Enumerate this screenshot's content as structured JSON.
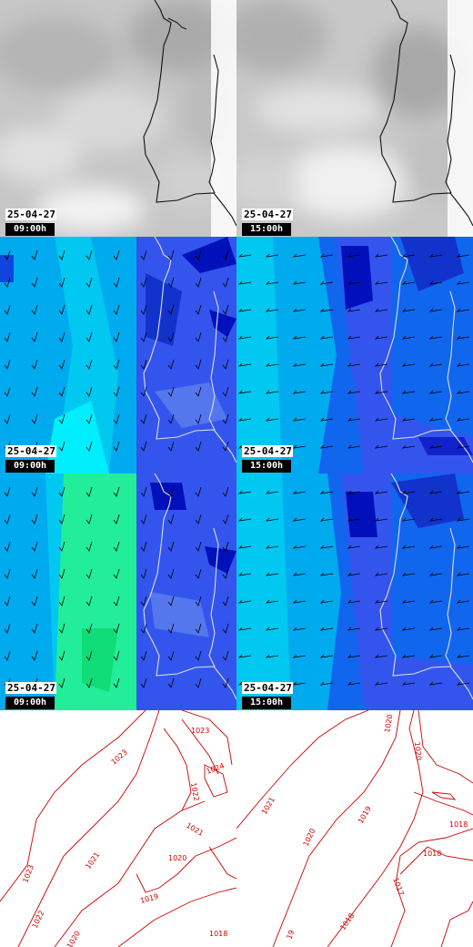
{
  "date_stamp": "25-04-27",
  "rows": [
    {
      "kind": "cloud",
      "panels": [
        {
          "time": "09:00h"
        },
        {
          "time": "15:00h"
        }
      ]
    },
    {
      "kind": "wind-low",
      "panels": [
        {
          "time": "09:00h"
        },
        {
          "time": "15:00h"
        }
      ]
    },
    {
      "kind": "wind-high",
      "panels": [
        {
          "time": "09:00h"
        },
        {
          "time": "15:00h"
        }
      ]
    },
    {
      "kind": "pressure",
      "panels": [
        {
          "labels": [
            "1023",
            "1023",
            "1024",
            "1022",
            "1021",
            "1023",
            "1022",
            "1021",
            "1020",
            "1019",
            "1020",
            "1018"
          ]
        },
        {
          "labels": [
            "1020",
            "1020",
            "1021",
            "1020",
            "1019",
            "1018",
            "1018",
            "1017",
            "1018",
            "19"
          ]
        }
      ]
    }
  ],
  "colors": {
    "coast": "#111111",
    "contour": "#cc0000",
    "cloud_bg": "#c4c4c4",
    "wind_sea": "#00ccee",
    "wind_land": "#3355ee",
    "wind_deep": "#0011bb",
    "wind_green": "#22ee99"
  }
}
